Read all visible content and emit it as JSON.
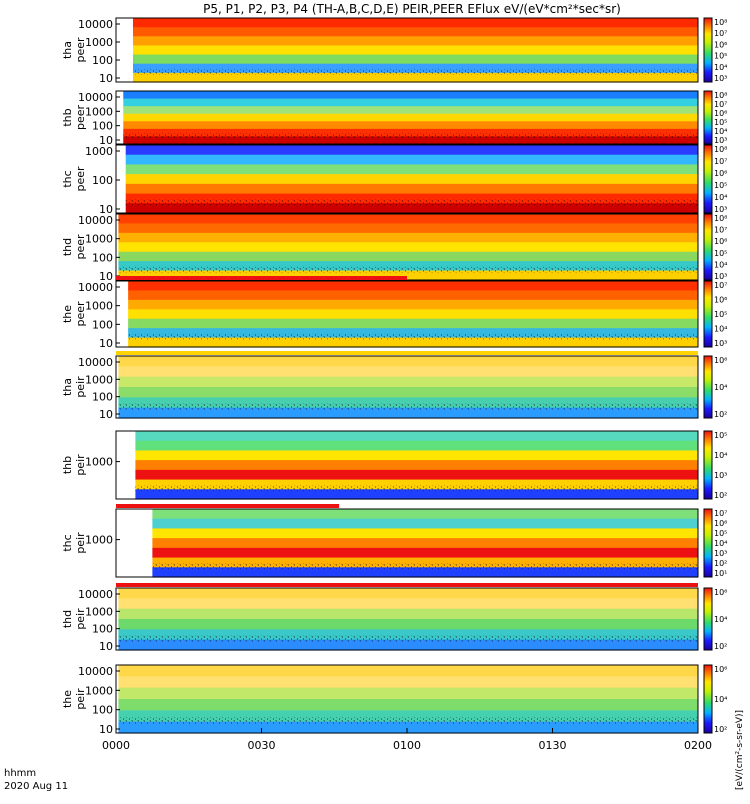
{
  "chart_data": {
    "type": "heatmap",
    "title": "P5, P1, P2, P3, P4 (TH-A,B,C,D,E) PEIR,PEER EFlux eV/(eV*cm²*sec*sr)",
    "x_axis": {
      "label_top": "hhmm",
      "label_bottom": "2020 Aug 11",
      "ticks": [
        "0000",
        "0030",
        "0100",
        "0130",
        "0200"
      ],
      "range_minutes": [
        0,
        120
      ]
    },
    "colorbar_label": "[eV/(cm²-s-sr-eV)]",
    "colors": {
      "low": "#1a1aff",
      "mid": "#33dd66",
      "high": "#ffe600",
      "max": "#ee1111"
    },
    "panels": [
      {
        "id": "tha-peer",
        "label": [
          "tha",
          "peer"
        ],
        "ylog": true,
        "yticks": [
          "10000",
          "1000",
          "100",
          "10"
        ],
        "cbar_ticks": [
          "10⁸",
          "10⁷",
          "10⁶",
          "10⁵",
          "10⁴",
          "10³"
        ],
        "data_start_min": 3.5,
        "bands": [
          "#ff2a00",
          "#ff5a00",
          "#ffa000",
          "#ffe000",
          "#7ddb60",
          "#3aa0ff",
          "#ffd000"
        ],
        "bar": []
      },
      {
        "id": "thb-peer",
        "label": [
          "thb",
          "peer"
        ],
        "ylog": true,
        "yticks": [
          "10000",
          "1000",
          "100",
          "10"
        ],
        "cbar_ticks": [
          "10⁸",
          "10⁷",
          "10⁶",
          "10⁵",
          "10⁴",
          "10³"
        ],
        "data_start_min": 1.5,
        "bands": [
          "#1a7fff",
          "#35d0e0",
          "#9fe27a",
          "#ffd800",
          "#ff8a00",
          "#ff3000",
          "#cc0000"
        ],
        "bar": []
      },
      {
        "id": "thc-peer",
        "label": [
          "thc",
          "peer"
        ],
        "ylog": true,
        "yticks": [
          "1000",
          "100",
          "10"
        ],
        "cbar_ticks": [
          "10⁸",
          "10⁷",
          "10⁶",
          "10⁵",
          "10⁴",
          "10³"
        ],
        "data_start_min": 2.0,
        "bands": [
          "#2a3cff",
          "#33b7ff",
          "#7fe07a",
          "#ffd400",
          "#ff7a00",
          "#ff2a00",
          "#cc0000"
        ],
        "bar": []
      },
      {
        "id": "thd-peer",
        "label": [
          "thd",
          "peer"
        ],
        "ylog": true,
        "yticks": [
          "10000",
          "1000",
          "100",
          "10"
        ],
        "cbar_ticks": [
          "10⁸",
          "10⁷",
          "10⁶",
          "10⁵",
          "10⁴",
          "10³"
        ],
        "data_start_min": 0.5,
        "bands": [
          "#ff4000",
          "#ff6a00",
          "#ffb000",
          "#ffe400",
          "#8ad860",
          "#37c8c8",
          "#ffd000"
        ],
        "bar": []
      },
      {
        "id": "the-peer",
        "label": [
          "the",
          "peer"
        ],
        "ylog": true,
        "yticks": [
          "10000",
          "1000",
          "100",
          "10"
        ],
        "cbar_ticks": [
          "10⁷",
          "10⁶",
          "10⁵",
          "10⁴",
          "10³"
        ],
        "data_start_min": 2.5,
        "bands": [
          "#ff3000",
          "#ff6000",
          "#ffaa00",
          "#ffe000",
          "#86da62",
          "#36b8e0",
          "#ffd000"
        ],
        "bar": [
          {
            "from_min": 0,
            "to_min": 60,
            "color": "#ee1111"
          }
        ]
      },
      {
        "id": "tha-peir",
        "label": [
          "tha",
          "peir"
        ],
        "ylog": true,
        "yticks": [
          "10000",
          "1000",
          "100",
          "10"
        ],
        "cbar_ticks": [
          "10⁶",
          "10⁴",
          "10²"
        ],
        "data_start_min": 0.5,
        "bands": [
          "#ffd84a",
          "#ffe070",
          "#c8e86a",
          "#8cdc6a",
          "#48cfb0",
          "#2a9cff"
        ],
        "bar": [
          {
            "from_min": 0,
            "to_min": 120,
            "color": "#ffd400"
          }
        ]
      },
      {
        "id": "thb-peir",
        "label": [
          "thb",
          "peir"
        ],
        "ylog": true,
        "yticks": [
          "1000"
        ],
        "cbar_ticks": [
          "10⁵",
          "10⁴",
          "10³",
          "10²"
        ],
        "data_start_min": 4.0,
        "bands": [
          "#57d9c0",
          "#5fe07a",
          "#ffe500",
          "#ff8000",
          "#ee1111",
          "#ffd000",
          "#2040ff"
        ],
        "bar": []
      },
      {
        "id": "thc-peir",
        "label": [
          "thc",
          "peir"
        ],
        "ylog": true,
        "yticks": [
          "1000"
        ],
        "cbar_ticks": [
          "10⁷",
          "10⁶",
          "10⁵",
          "10⁴",
          "10³",
          "10²",
          "10¹"
        ],
        "data_start_min": 7.5,
        "bands": [
          "#7de07a",
          "#4fd0d0",
          "#ffe500",
          "#ff8000",
          "#ee1111",
          "#ffb000",
          "#2040ff"
        ],
        "bar": [
          {
            "from_min": 0,
            "to_min": 46,
            "color": "#ee1111"
          }
        ]
      },
      {
        "id": "thd-peir",
        "label": [
          "thd",
          "peir"
        ],
        "ylog": true,
        "yticks": [
          "10000",
          "1000",
          "100",
          "10"
        ],
        "cbar_ticks": [
          "10⁶",
          "10⁴",
          "10²"
        ],
        "data_start_min": 0.5,
        "bands": [
          "#ffd84a",
          "#ffe070",
          "#b8e66a",
          "#6cd96a",
          "#3bc8c8",
          "#2a8cff"
        ],
        "bar": [
          {
            "from_min": 0,
            "to_min": 120,
            "color": "#ee1111"
          }
        ]
      },
      {
        "id": "the-peir",
        "label": [
          "the",
          "peir"
        ],
        "ylog": true,
        "yticks": [
          "10000",
          "1000",
          "100",
          "10"
        ],
        "cbar_ticks": [
          "10⁶",
          "10⁴",
          "10²"
        ],
        "data_start_min": 0.5,
        "bands": [
          "#ffd84a",
          "#ffe070",
          "#c2e86a",
          "#7ddc6a",
          "#45d0b0",
          "#2a9cff"
        ],
        "bar": []
      }
    ]
  }
}
